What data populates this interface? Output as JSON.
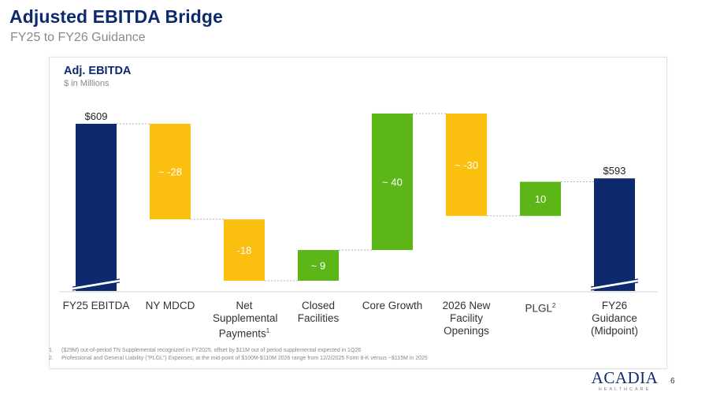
{
  "slide": {
    "title": "Adjusted EBITDA Bridge",
    "subtitle": "FY25 to FY26 Guidance",
    "page_number": "6"
  },
  "chart_data": {
    "type": "waterfall",
    "title": "Adj. EBITDA",
    "units": "$ in Millions",
    "categories": [
      {
        "label": "FY25 EBITDA",
        "sup": ""
      },
      {
        "label": "NY MDCD",
        "sup": ""
      },
      {
        "label": "Net Supplemental Payments",
        "sup": "1"
      },
      {
        "label": "Closed Facilities",
        "sup": ""
      },
      {
        "label": "Core Growth",
        "sup": ""
      },
      {
        "label": "2026 New Facility Openings",
        "sup": ""
      },
      {
        "label": "PLGL",
        "sup": "2"
      },
      {
        "label": "FY26 Guidance (Midpoint)",
        "sup": ""
      }
    ],
    "steps": [
      {
        "kind": "total",
        "value": 609,
        "label": "$609"
      },
      {
        "kind": "decrease",
        "value": -28,
        "label": "~ -28"
      },
      {
        "kind": "decrease",
        "value": -18,
        "label": "-18"
      },
      {
        "kind": "increase",
        "value": 9,
        "label": "~ 9"
      },
      {
        "kind": "increase",
        "value": 40,
        "label": "~ 40"
      },
      {
        "kind": "decrease",
        "value": -30,
        "label": "~ -30"
      },
      {
        "kind": "increase",
        "value": 10,
        "label": "10"
      },
      {
        "kind": "total",
        "value": 593,
        "label": "$593"
      }
    ],
    "ylim": [
      560,
      615
    ],
    "axis_break": true,
    "colors": {
      "total": "#0e2a6e",
      "decrease": "#fbbf10",
      "increase": "#5cb618",
      "connector": "#b5b5b5",
      "label_on_bar": "#ffffff",
      "label_above": "#222222"
    }
  },
  "footnotes": [
    {
      "num": "1.",
      "text": "($29M) out-of-period TN Supplemental recognized in FY2025, offset by $11M out of period supplemental expected in 1Q26"
    },
    {
      "num": "2.",
      "text": "Professional and General Liability (\"PLGL\") Expenses; at the mid-point of $100M-$110M 2026 range from 12/2/2025 Form 8-K versus ~$115M in 2025"
    }
  ],
  "logo": {
    "main": "ACADIA",
    "sub": "HEALTHCARE"
  }
}
